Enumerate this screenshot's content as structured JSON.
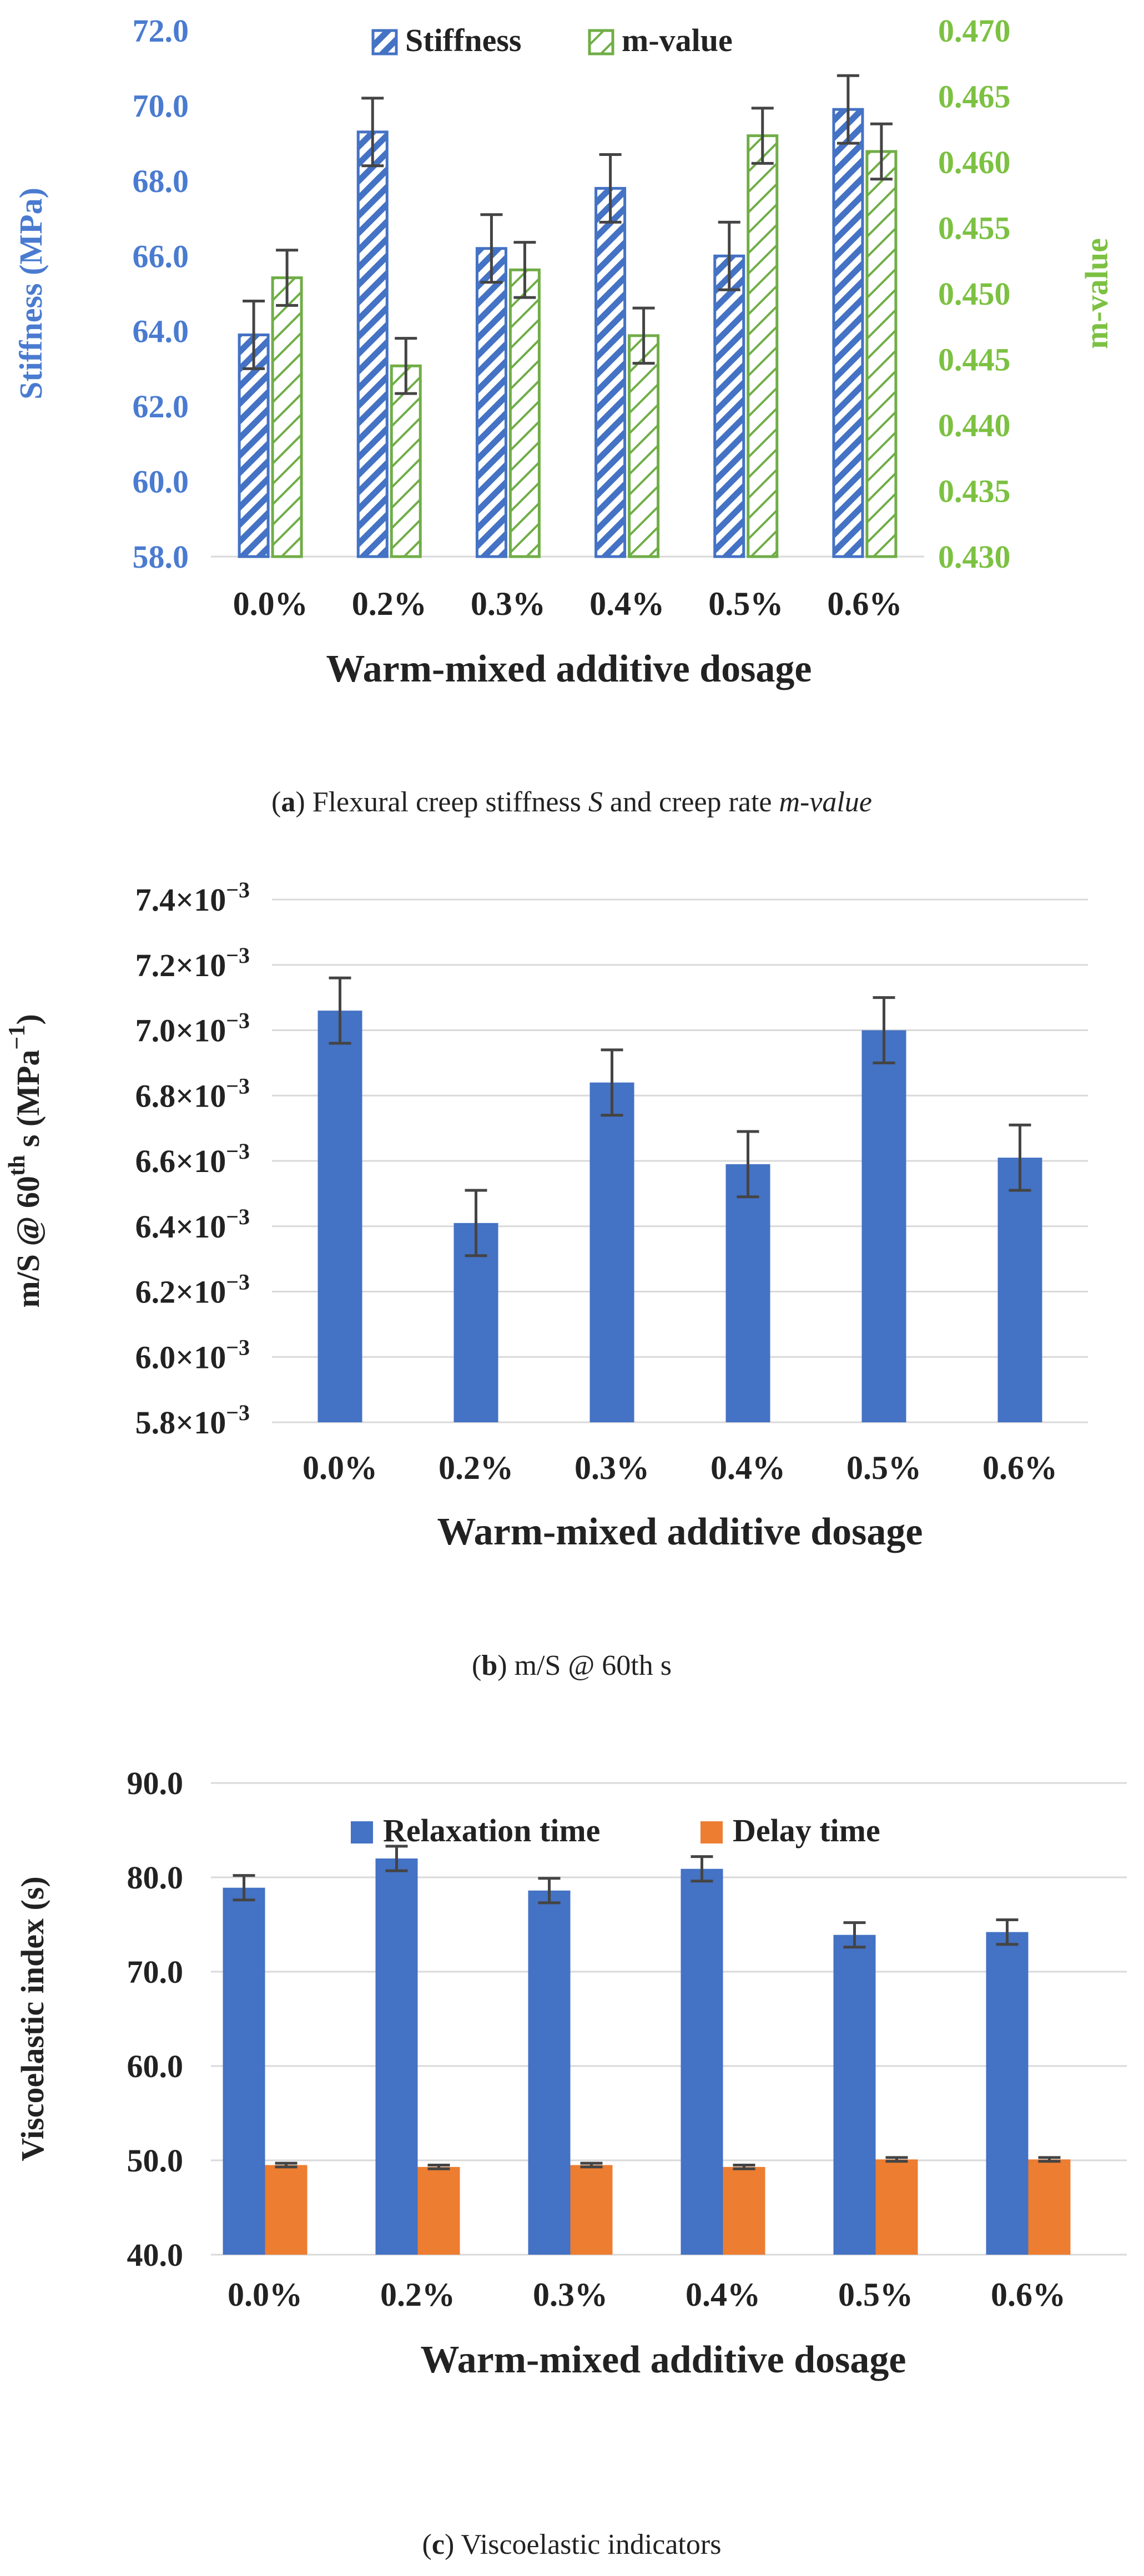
{
  "chart_data": [
    {
      "type": "bar",
      "categories": [
        "0.0%",
        "0.2%",
        "0.3%",
        "0.4%",
        "0.5%",
        "0.6%"
      ],
      "series": [
        {
          "name": "Stiffness",
          "axis": "left",
          "values": [
            63.9,
            69.3,
            66.2,
            67.8,
            66.0,
            69.9
          ],
          "errors": [
            0.9,
            0.9,
            0.9,
            0.9,
            0.9,
            0.9
          ],
          "color": "#4472c4",
          "pattern": "diagonal-hatch"
        },
        {
          "name": "m-value",
          "axis": "right",
          "values": [
            0.4512,
            0.4445,
            0.4518,
            0.4468,
            0.462,
            0.4608
          ],
          "errors": [
            0.0021,
            0.0021,
            0.0021,
            0.0021,
            0.0021,
            0.0021
          ],
          "color": "#70ad47",
          "pattern": "diagonal-hatch"
        }
      ],
      "ylabel": "Stiffness (MPa)",
      "y2label": "m-value",
      "xlabel": "Warm-mixed additive dosage",
      "ylim": [
        58.0,
        72.0
      ],
      "y2lim": [
        0.43,
        0.47
      ],
      "yticks": [
        "58.0",
        "60.0",
        "62.0",
        "64.0",
        "66.0",
        "68.0",
        "70.0",
        "72.0"
      ],
      "y2ticks": [
        "0.430",
        "0.435",
        "0.440",
        "0.445",
        "0.450",
        "0.455",
        "0.460",
        "0.465",
        "0.470"
      ],
      "legend": "top",
      "caption": {
        "label": "a",
        "text": " Flexural creep stiffness ",
        "sym1": "S",
        "mid": " and creep rate ",
        "sym2": "m-value"
      }
    },
    {
      "type": "bar",
      "categories": [
        "0.0%",
        "0.2%",
        "0.3%",
        "0.4%",
        "0.5%",
        "0.6%"
      ],
      "series": [
        {
          "name": "m/S",
          "values": [
            7.06,
            6.41,
            6.84,
            6.59,
            7.0,
            6.61
          ],
          "errors": [
            0.1,
            0.1,
            0.1,
            0.1,
            0.1,
            0.1
          ],
          "color": "#4472c4"
        }
      ],
      "ylabel": "m/S @ 60th s (MPa−1)",
      "ylabel_parts": {
        "main": "m/S @ 60",
        "sup1": "th",
        "mid": " s (MPa",
        "sup2": "−1",
        "end": ")"
      },
      "xlabel": "Warm-mixed additive dosage",
      "ylim": [
        5.8,
        7.4
      ],
      "y_unit": "×10−3",
      "yticks": [
        {
          "m": "5.8×10",
          "e": "−3"
        },
        {
          "m": "6.0×10",
          "e": "−3"
        },
        {
          "m": "6.2×10",
          "e": "−3"
        },
        {
          "m": "6.4×10",
          "e": "−3"
        },
        {
          "m": "6.6×10",
          "e": "−3"
        },
        {
          "m": "6.8×10",
          "e": "−3"
        },
        {
          "m": "7.0×10",
          "e": "−3"
        },
        {
          "m": "7.2×10",
          "e": "−3"
        },
        {
          "m": "7.4×10",
          "e": "−3"
        }
      ],
      "caption": {
        "label": "b",
        "text": " m/S @ 60th s"
      }
    },
    {
      "type": "bar",
      "categories": [
        "0.0%",
        "0.2%",
        "0.3%",
        "0.4%",
        "0.5%",
        "0.6%"
      ],
      "series": [
        {
          "name": "Relaxation time",
          "values": [
            78.9,
            82.0,
            78.6,
            80.9,
            73.9,
            74.2
          ],
          "errors": [
            1.3,
            1.3,
            1.3,
            1.3,
            1.3,
            1.3
          ],
          "color": "#4472c4"
        },
        {
          "name": "Delay time",
          "values": [
            49.5,
            49.3,
            49.5,
            49.3,
            50.1,
            50.1
          ],
          "errors": [
            0.2,
            0.2,
            0.2,
            0.2,
            0.2,
            0.2
          ],
          "color": "#ed7d31"
        }
      ],
      "ylabel": "Viscoelastic index (s)",
      "xlabel": "Warm-mixed additive dosage",
      "ylim": [
        40.0,
        90.0
      ],
      "yticks": [
        "40.0",
        "50.0",
        "60.0",
        "70.0",
        "80.0",
        "90.0"
      ],
      "legend": "top",
      "caption": {
        "label": "c",
        "text": " Viscoelastic indicators"
      }
    }
  ]
}
